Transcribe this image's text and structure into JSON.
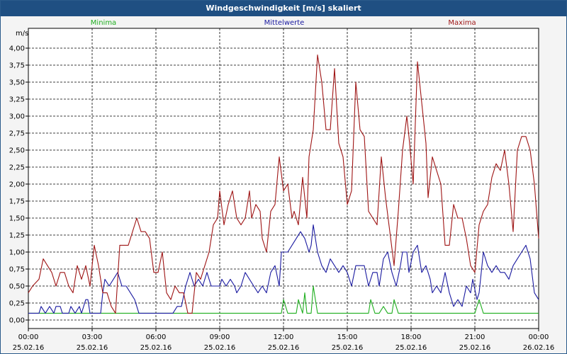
{
  "window": {
    "title": "Windgeschwindigkeit [m/s] skaliert"
  },
  "chart_data": {
    "type": "line",
    "title": "Windgeschwindigkeit [m/s] skaliert",
    "ylabel": "m/s",
    "ylim": [
      0,
      4.2
    ],
    "xlim": [
      0,
      24
    ],
    "grid": true,
    "yticks": [
      "0,00",
      "0,25",
      "0,50",
      "0,75",
      "1,00",
      "1,25",
      "1,50",
      "1,75",
      "2,00",
      "2,25",
      "2,50",
      "2,75",
      "3,00",
      "3,25",
      "3,50",
      "3,75",
      "4,00"
    ],
    "xticks": [
      {
        "time": "00:00",
        "date": "25.02.16"
      },
      {
        "time": "03:00",
        "date": "25.02.16"
      },
      {
        "time": "06:00",
        "date": "25.02.16"
      },
      {
        "time": "09:00",
        "date": "25.02.16"
      },
      {
        "time": "12:00",
        "date": "25.02.16"
      },
      {
        "time": "15:00",
        "date": "25.02.16"
      },
      {
        "time": "18:00",
        "date": "25.02.16"
      },
      {
        "time": "21:00",
        "date": "25.02.16"
      },
      {
        "time": "00:00",
        "date": "26.02.16"
      }
    ],
    "legend": {
      "position": "top"
    },
    "series": [
      {
        "name": "Minima",
        "color": "#1fae1f",
        "points": [
          [
            0,
            0.1
          ],
          [
            11.9,
            0.1
          ],
          [
            12,
            0.3
          ],
          [
            12.2,
            0.1
          ],
          [
            12.6,
            0.1
          ],
          [
            12.7,
            0.3
          ],
          [
            12.9,
            0.1
          ],
          [
            13.0,
            0.4
          ],
          [
            13.1,
            0.1
          ],
          [
            13.3,
            0.1
          ],
          [
            13.4,
            0.5
          ],
          [
            13.6,
            0.1
          ],
          [
            16,
            0.1
          ],
          [
            16.1,
            0.3
          ],
          [
            16.3,
            0.1
          ],
          [
            16.5,
            0.1
          ],
          [
            16.7,
            0.2
          ],
          [
            16.9,
            0.1
          ],
          [
            17.1,
            0.1
          ],
          [
            17.2,
            0.3
          ],
          [
            17.4,
            0.1
          ],
          [
            21,
            0.1
          ],
          [
            21.2,
            0.3
          ],
          [
            21.4,
            0.1
          ],
          [
            24,
            0.1
          ]
        ]
      },
      {
        "name": "Mittelwerte",
        "color": "#1a1aa0",
        "points": [
          [
            0,
            0.1
          ],
          [
            0.5,
            0.1
          ],
          [
            0.6,
            0.2
          ],
          [
            0.8,
            0.1
          ],
          [
            1.0,
            0.2
          ],
          [
            1.2,
            0.1
          ],
          [
            1.3,
            0.2
          ],
          [
            1.5,
            0.2
          ],
          [
            1.6,
            0.1
          ],
          [
            1.9,
            0.1
          ],
          [
            2.0,
            0.2
          ],
          [
            2.2,
            0.1
          ],
          [
            2.4,
            0.2
          ],
          [
            2.5,
            0.1
          ],
          [
            2.7,
            0.3
          ],
          [
            2.8,
            0.3
          ],
          [
            2.9,
            0.1
          ],
          [
            3.4,
            0.1
          ],
          [
            3.5,
            0.4
          ],
          [
            3.6,
            0.6
          ],
          [
            3.8,
            0.5
          ],
          [
            4.0,
            0.6
          ],
          [
            4.2,
            0.7
          ],
          [
            4.4,
            0.5
          ],
          [
            4.6,
            0.5
          ],
          [
            4.8,
            0.4
          ],
          [
            5.0,
            0.3
          ],
          [
            5.2,
            0.1
          ],
          [
            6.6,
            0.1
          ],
          [
            6.8,
            0.1
          ],
          [
            7.0,
            0.2
          ],
          [
            7.2,
            0.2
          ],
          [
            7.4,
            0.5
          ],
          [
            7.6,
            0.7
          ],
          [
            7.8,
            0.5
          ],
          [
            8.0,
            0.6
          ],
          [
            8.2,
            0.5
          ],
          [
            8.4,
            0.7
          ],
          [
            8.6,
            0.5
          ],
          [
            8.8,
            0.5
          ],
          [
            9.0,
            0.5
          ],
          [
            9.1,
            0.6
          ],
          [
            9.3,
            0.5
          ],
          [
            9.5,
            0.6
          ],
          [
            9.7,
            0.5
          ],
          [
            9.8,
            0.4
          ],
          [
            10.0,
            0.5
          ],
          [
            10.2,
            0.7
          ],
          [
            10.4,
            0.6
          ],
          [
            10.6,
            0.5
          ],
          [
            10.8,
            0.4
          ],
          [
            11.0,
            0.5
          ],
          [
            11.2,
            0.4
          ],
          [
            11.4,
            0.7
          ],
          [
            11.6,
            0.8
          ],
          [
            11.8,
            0.5
          ],
          [
            11.9,
            1.0
          ],
          [
            12.2,
            1.0
          ],
          [
            12.4,
            1.1
          ],
          [
            12.6,
            1.2
          ],
          [
            12.8,
            1.3
          ],
          [
            13.0,
            1.2
          ],
          [
            13.2,
            1.0
          ],
          [
            13.3,
            1.1
          ],
          [
            13.4,
            1.4
          ],
          [
            13.6,
            1.0
          ],
          [
            13.8,
            0.8
          ],
          [
            14.0,
            0.7
          ],
          [
            14.2,
            0.9
          ],
          [
            14.4,
            0.8
          ],
          [
            14.6,
            0.7
          ],
          [
            14.8,
            0.8
          ],
          [
            15.0,
            0.7
          ],
          [
            15.2,
            0.5
          ],
          [
            15.4,
            0.8
          ],
          [
            15.6,
            0.8
          ],
          [
            15.8,
            0.8
          ],
          [
            16.0,
            0.5
          ],
          [
            16.2,
            0.7
          ],
          [
            16.4,
            0.7
          ],
          [
            16.5,
            0.5
          ],
          [
            16.7,
            0.9
          ],
          [
            16.9,
            1.0
          ],
          [
            17.1,
            0.7
          ],
          [
            17.3,
            0.5
          ],
          [
            17.5,
            0.8
          ],
          [
            17.6,
            1.0
          ],
          [
            17.8,
            1.0
          ],
          [
            17.9,
            0.7
          ],
          [
            18.1,
            1.0
          ],
          [
            18.3,
            1.1
          ],
          [
            18.5,
            0.7
          ],
          [
            18.7,
            0.8
          ],
          [
            18.9,
            0.6
          ],
          [
            19.0,
            0.4
          ],
          [
            19.2,
            0.5
          ],
          [
            19.4,
            0.4
          ],
          [
            19.6,
            0.7
          ],
          [
            19.8,
            0.4
          ],
          [
            20.0,
            0.2
          ],
          [
            20.2,
            0.3
          ],
          [
            20.4,
            0.2
          ],
          [
            20.6,
            0.5
          ],
          [
            20.8,
            0.4
          ],
          [
            20.9,
            0.6
          ],
          [
            21.1,
            0.3
          ],
          [
            21.2,
            0.4
          ],
          [
            21.4,
            1.0
          ],
          [
            21.6,
            0.8
          ],
          [
            21.8,
            0.7
          ],
          [
            22.0,
            0.8
          ],
          [
            22.2,
            0.7
          ],
          [
            22.4,
            0.7
          ],
          [
            22.6,
            0.6
          ],
          [
            22.8,
            0.8
          ],
          [
            23.0,
            0.9
          ],
          [
            23.2,
            1.0
          ],
          [
            23.4,
            1.1
          ],
          [
            23.6,
            0.9
          ],
          [
            23.8,
            0.4
          ],
          [
            24.0,
            0.3
          ]
        ]
      },
      {
        "name": "Maxima",
        "color": "#9e1414",
        "points": [
          [
            0,
            0.4
          ],
          [
            0.2,
            0.5
          ],
          [
            0.5,
            0.6
          ],
          [
            0.7,
            0.9
          ],
          [
            0.9,
            0.8
          ],
          [
            1.1,
            0.7
          ],
          [
            1.3,
            0.5
          ],
          [
            1.5,
            0.7
          ],
          [
            1.7,
            0.7
          ],
          [
            1.9,
            0.5
          ],
          [
            2.1,
            0.4
          ],
          [
            2.3,
            0.8
          ],
          [
            2.5,
            0.6
          ],
          [
            2.7,
            0.8
          ],
          [
            2.9,
            0.5
          ],
          [
            3.1,
            1.1
          ],
          [
            3.3,
            0.8
          ],
          [
            3.5,
            0.4
          ],
          [
            3.7,
            0.4
          ],
          [
            3.9,
            0.2
          ],
          [
            4.1,
            0.1
          ],
          [
            4.3,
            1.1
          ],
          [
            4.5,
            1.1
          ],
          [
            4.7,
            1.1
          ],
          [
            4.9,
            1.3
          ],
          [
            5.1,
            1.5
          ],
          [
            5.3,
            1.3
          ],
          [
            5.5,
            1.3
          ],
          [
            5.7,
            1.2
          ],
          [
            5.9,
            0.7
          ],
          [
            6.1,
            0.7
          ],
          [
            6.3,
            1.0
          ],
          [
            6.5,
            0.4
          ],
          [
            6.7,
            0.3
          ],
          [
            6.9,
            0.5
          ],
          [
            7.1,
            0.4
          ],
          [
            7.3,
            0.4
          ],
          [
            7.5,
            0.1
          ],
          [
            7.7,
            0.1
          ],
          [
            7.9,
            0.7
          ],
          [
            8.1,
            0.6
          ],
          [
            8.3,
            0.8
          ],
          [
            8.5,
            1.0
          ],
          [
            8.7,
            1.4
          ],
          [
            8.9,
            1.5
          ],
          [
            9.0,
            1.9
          ],
          [
            9.2,
            1.4
          ],
          [
            9.4,
            1.7
          ],
          [
            9.6,
            1.9
          ],
          [
            9.8,
            1.5
          ],
          [
            10.0,
            1.4
          ],
          [
            10.2,
            1.5
          ],
          [
            10.4,
            1.9
          ],
          [
            10.5,
            1.5
          ],
          [
            10.7,
            1.7
          ],
          [
            10.9,
            1.6
          ],
          [
            11.0,
            1.2
          ],
          [
            11.2,
            1.0
          ],
          [
            11.4,
            1.6
          ],
          [
            11.6,
            1.7
          ],
          [
            11.8,
            2.4
          ],
          [
            12.0,
            1.9
          ],
          [
            12.2,
            2.0
          ],
          [
            12.4,
            1.5
          ],
          [
            12.5,
            1.6
          ],
          [
            12.7,
            1.4
          ],
          [
            12.9,
            2.1
          ],
          [
            13.1,
            1.5
          ],
          [
            13.2,
            2.4
          ],
          [
            13.4,
            2.8
          ],
          [
            13.6,
            3.9
          ],
          [
            13.8,
            3.5
          ],
          [
            14.0,
            2.8
          ],
          [
            14.2,
            2.8
          ],
          [
            14.4,
            3.7
          ],
          [
            14.6,
            2.6
          ],
          [
            14.8,
            2.4
          ],
          [
            15.0,
            1.7
          ],
          [
            15.2,
            1.9
          ],
          [
            15.4,
            3.5
          ],
          [
            15.6,
            2.8
          ],
          [
            15.8,
            2.7
          ],
          [
            16.0,
            1.6
          ],
          [
            16.2,
            1.5
          ],
          [
            16.4,
            1.4
          ],
          [
            16.6,
            2.4
          ],
          [
            16.8,
            1.8
          ],
          [
            17.0,
            1.3
          ],
          [
            17.2,
            0.8
          ],
          [
            17.4,
            1.6
          ],
          [
            17.6,
            2.5
          ],
          [
            17.8,
            3.0
          ],
          [
            17.9,
            2.7
          ],
          [
            18.1,
            2.0
          ],
          [
            18.3,
            3.8
          ],
          [
            18.5,
            3.2
          ],
          [
            18.7,
            2.6
          ],
          [
            18.8,
            1.8
          ],
          [
            19.0,
            2.4
          ],
          [
            19.2,
            2.2
          ],
          [
            19.4,
            2.0
          ],
          [
            19.6,
            1.1
          ],
          [
            19.8,
            1.1
          ],
          [
            20.0,
            1.7
          ],
          [
            20.2,
            1.5
          ],
          [
            20.4,
            1.5
          ],
          [
            20.6,
            1.2
          ],
          [
            20.8,
            0.8
          ],
          [
            21.0,
            0.7
          ],
          [
            21.2,
            1.4
          ],
          [
            21.4,
            1.6
          ],
          [
            21.6,
            1.7
          ],
          [
            21.8,
            2.1
          ],
          [
            22.0,
            2.3
          ],
          [
            22.2,
            2.2
          ],
          [
            22.4,
            2.5
          ],
          [
            22.6,
            2.0
          ],
          [
            22.8,
            1.3
          ],
          [
            23.0,
            2.5
          ],
          [
            23.2,
            2.7
          ],
          [
            23.4,
            2.7
          ],
          [
            23.6,
            2.5
          ],
          [
            23.8,
            2.0
          ],
          [
            24.0,
            1.2
          ]
        ]
      }
    ]
  }
}
